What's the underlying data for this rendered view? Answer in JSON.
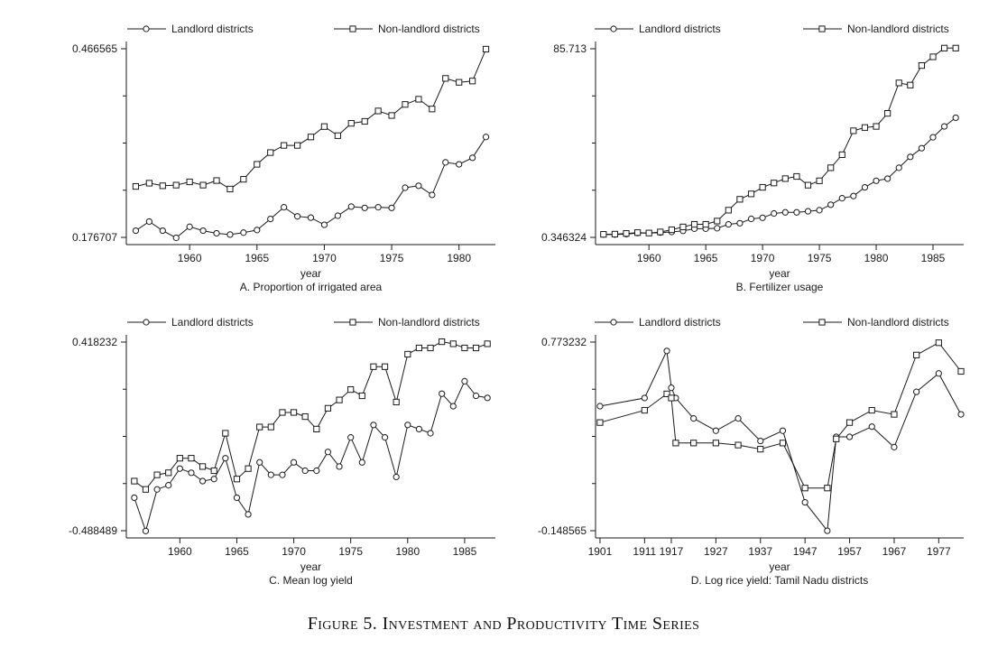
{
  "figure_caption": "Figure 5. Investment and Productivity Time Series",
  "chart_data": [
    {
      "type": "line",
      "title": "A. Proportion of irrigated area",
      "xlabel": "year",
      "ylabel": "",
      "xticks": [
        1960,
        1965,
        1970,
        1975,
        1980
      ],
      "yticks": [
        "0.176707",
        "0.466565"
      ],
      "xlim": [
        1955.3,
        1982.7
      ],
      "ylim": [
        0.1767,
        0.4666
      ],
      "legend": [
        "Landlord districts",
        "Non-landlord districts"
      ],
      "legend_position": "top",
      "x": [
        1956,
        1957,
        1958,
        1959,
        1960,
        1961,
        1962,
        1963,
        1964,
        1965,
        1966,
        1967,
        1968,
        1969,
        1970,
        1971,
        1972,
        1973,
        1974,
        1975,
        1976,
        1977,
        1978,
        1979,
        1980,
        1981,
        1982
      ],
      "series": [
        {
          "name": "Landlord districts",
          "marker": "circle",
          "values": [
            0.187,
            0.201,
            0.187,
            0.176,
            0.193,
            0.187,
            0.183,
            0.181,
            0.184,
            0.188,
            0.205,
            0.223,
            0.209,
            0.207,
            0.196,
            0.21,
            0.224,
            0.222,
            0.223,
            0.222,
            0.253,
            0.256,
            0.242,
            0.292,
            0.289,
            0.299,
            0.331
          ]
        },
        {
          "name": "Non-landlord districts",
          "marker": "square",
          "values": [
            0.255,
            0.26,
            0.256,
            0.257,
            0.262,
            0.257,
            0.264,
            0.251,
            0.266,
            0.289,
            0.307,
            0.318,
            0.318,
            0.331,
            0.347,
            0.333,
            0.352,
            0.355,
            0.371,
            0.364,
            0.381,
            0.389,
            0.374,
            0.421,
            0.415,
            0.417,
            0.466
          ]
        }
      ]
    },
    {
      "type": "line",
      "title": "B. Fertilizer usage",
      "xlabel": "year",
      "ylabel": "",
      "xticks": [
        1960,
        1965,
        1970,
        1975,
        1980,
        1985
      ],
      "yticks": [
        "0.346324",
        "85.713"
      ],
      "xlim": [
        1955.3,
        1987.7
      ],
      "ylim": [
        -1.0,
        85.713
      ],
      "legend": [
        "Landlord districts",
        "Non-landlord districts"
      ],
      "legend_position": "top",
      "x": [
        1956,
        1957,
        1958,
        1959,
        1960,
        1961,
        1962,
        1963,
        1964,
        1965,
        1966,
        1967,
        1968,
        1969,
        1970,
        1971,
        1972,
        1973,
        1974,
        1975,
        1976,
        1977,
        1978,
        1979,
        1980,
        1981,
        1982,
        1983,
        1984,
        1985,
        1986,
        1987
      ],
      "series": [
        {
          "name": "Landlord districts",
          "marker": "circle",
          "values": [
            0.3,
            0.3,
            0.5,
            1.0,
            1.0,
            1.2,
            1.5,
            2.0,
            3.0,
            3.0,
            3.2,
            5.0,
            5.5,
            7.5,
            8.0,
            10.0,
            10.5,
            10.5,
            11.0,
            11.5,
            14.0,
            17.0,
            18.0,
            22.0,
            25.0,
            26.0,
            31.0,
            36.0,
            40.0,
            45.0,
            50.0,
            54.0
          ]
        },
        {
          "name": "Non-landlord districts",
          "marker": "square",
          "values": [
            0.4,
            0.5,
            0.8,
            1.2,
            1.0,
            1.5,
            2.5,
            3.8,
            5.0,
            5.0,
            6.5,
            11.5,
            16.5,
            19.0,
            22.0,
            24.0,
            26.0,
            27.0,
            23.0,
            25.0,
            31.0,
            37.0,
            48.0,
            49.5,
            50.0,
            56.0,
            70.0,
            69.0,
            78.0,
            82.0,
            86.0,
            86.0
          ]
        }
      ]
    },
    {
      "type": "line",
      "title": "C. Mean log yield",
      "xlabel": "year",
      "ylabel": "",
      "xticks": [
        1960,
        1965,
        1970,
        1975,
        1980,
        1985
      ],
      "yticks": [
        "-0.488489",
        "0.418232"
      ],
      "xlim": [
        1955.3,
        1987.7
      ],
      "ylim": [
        -0.488489,
        0.418232
      ],
      "legend": [
        "Landlord districts",
        "Non-landlord districts"
      ],
      "legend_position": "top",
      "x": [
        1956,
        1957,
        1958,
        1959,
        1960,
        1961,
        1962,
        1963,
        1964,
        1965,
        1966,
        1967,
        1968,
        1969,
        1970,
        1971,
        1972,
        1973,
        1974,
        1975,
        1976,
        1977,
        1978,
        1979,
        1980,
        1981,
        1982,
        1983,
        1984,
        1985,
        1986,
        1987
      ],
      "series": [
        {
          "name": "Landlord districts",
          "marker": "circle",
          "values": [
            -0.33,
            -0.49,
            -0.29,
            -0.27,
            -0.19,
            -0.21,
            -0.25,
            -0.24,
            -0.14,
            -0.33,
            -0.41,
            -0.16,
            -0.22,
            -0.22,
            -0.16,
            -0.2,
            -0.2,
            -0.11,
            -0.18,
            -0.04,
            -0.16,
            0.02,
            -0.04,
            -0.23,
            0.02,
            0.0,
            -0.02,
            0.17,
            0.11,
            0.23,
            0.16,
            0.15
          ]
        },
        {
          "name": "Non-landlord districts",
          "marker": "square",
          "values": [
            -0.25,
            -0.29,
            -0.22,
            -0.21,
            -0.14,
            -0.14,
            -0.18,
            -0.2,
            -0.02,
            -0.24,
            -0.19,
            0.01,
            0.01,
            0.08,
            0.08,
            0.06,
            0.0,
            0.1,
            0.14,
            0.19,
            0.16,
            0.3,
            0.3,
            0.13,
            0.36,
            0.39,
            0.39,
            0.42,
            0.41,
            0.39,
            0.39,
            0.41
          ]
        }
      ]
    },
    {
      "type": "line",
      "title": "D. Log rice yield: Tamil Nadu districts",
      "xlabel": "year",
      "ylabel": "",
      "xticks": [
        1901,
        1911,
        1917,
        1927,
        1937,
        1947,
        1957,
        1967,
        1977
      ],
      "yticks": [
        "-0.148565",
        "0.773232"
      ],
      "xlim": [
        1900,
        1982.6
      ],
      "ylim": [
        -0.148565,
        0.773232
      ],
      "legend": [
        "Landlord districts",
        "Non-landlord districts"
      ],
      "legend_position": "top",
      "x": [
        1901,
        1911,
        1916,
        1917,
        1918,
        1922,
        1927,
        1932,
        1937,
        1942,
        1947,
        1952,
        1954,
        1957,
        1962,
        1967,
        1972,
        1977,
        1982
      ],
      "series": [
        {
          "name": "Landlord districts",
          "marker": "circle",
          "values": [
            0.46,
            0.5,
            0.73,
            0.55,
            0.5,
            0.4,
            0.34,
            0.4,
            0.29,
            0.34,
            -0.01,
            -0.149,
            0.31,
            0.31,
            0.36,
            0.26,
            0.53,
            0.62,
            0.42
          ]
        },
        {
          "name": "Non-landlord districts",
          "marker": "square",
          "values": [
            0.38,
            0.44,
            0.52,
            0.5,
            0.28,
            0.28,
            0.28,
            0.27,
            0.25,
            0.28,
            0.06,
            0.06,
            0.3,
            0.38,
            0.44,
            0.42,
            0.71,
            0.77,
            0.63
          ]
        }
      ]
    }
  ]
}
